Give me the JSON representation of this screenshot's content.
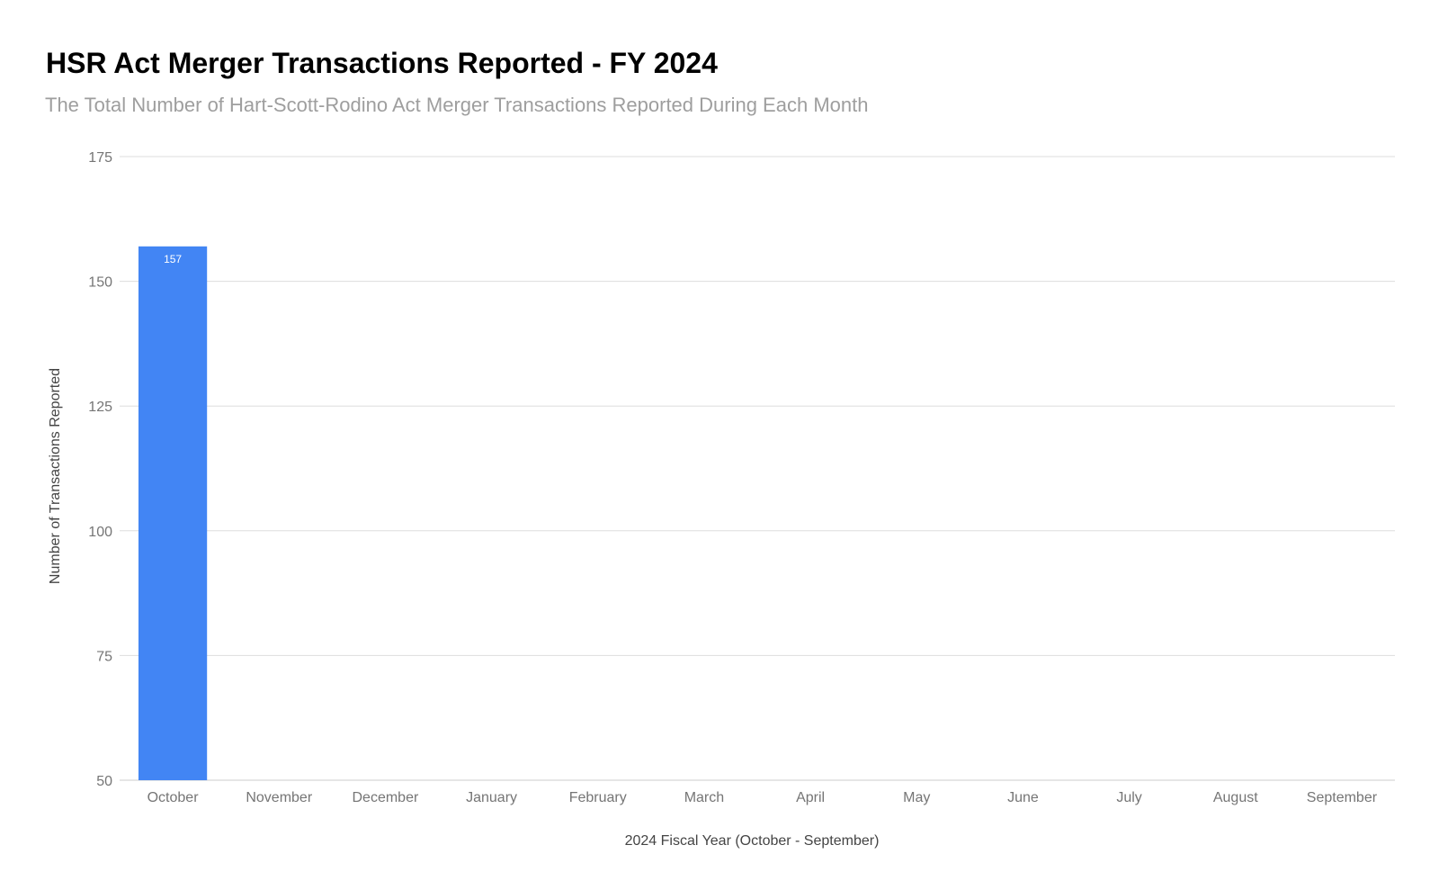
{
  "chart_data": {
    "type": "bar",
    "title": "HSR Act Merger Transactions Reported - FY 2024",
    "subtitle": "The Total Number of Hart-Scott-Rodino Act Merger Transactions Reported During Each Month",
    "xlabel": "2024 Fiscal Year (October - September)",
    "ylabel": "Number of Transactions Reported",
    "categories": [
      "October",
      "November",
      "December",
      "January",
      "February",
      "March",
      "April",
      "May",
      "June",
      "July",
      "August",
      "September"
    ],
    "values": [
      157,
      null,
      null,
      null,
      null,
      null,
      null,
      null,
      null,
      null,
      null,
      null
    ],
    "data_labels": [
      "157",
      "",
      "",
      "",
      "",
      "",
      "",
      "",
      "",
      "",
      "",
      ""
    ],
    "ylim": [
      50,
      175
    ],
    "yticks": [
      50,
      75,
      100,
      125,
      150,
      175
    ],
    "grid": true,
    "legend": "none",
    "bar_color": "#4285f4"
  }
}
